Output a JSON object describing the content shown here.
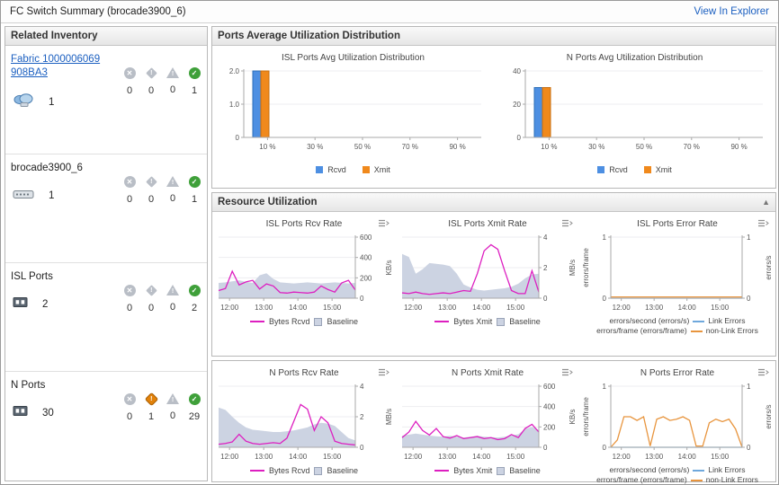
{
  "header": {
    "title": "FC Switch Summary (brocade3900_6)",
    "action": "View In Explorer"
  },
  "inventory": {
    "title": "Related Inventory",
    "items": [
      {
        "name": "Fabric 1000006069908BA3",
        "link": true,
        "icon": "fabric",
        "count": "1",
        "statuses": [
          {
            "type": "error",
            "value": "0",
            "active": false
          },
          {
            "type": "critical",
            "value": "0",
            "active": false
          },
          {
            "type": "warning",
            "value": "0",
            "active": false
          },
          {
            "type": "ok",
            "value": "1",
            "active": true
          }
        ]
      },
      {
        "name": "brocade3900_6",
        "link": false,
        "icon": "switch",
        "count": "1",
        "statuses": [
          {
            "type": "error",
            "value": "0",
            "active": false
          },
          {
            "type": "critical",
            "value": "0",
            "active": false
          },
          {
            "type": "warning",
            "value": "0",
            "active": false
          },
          {
            "type": "ok",
            "value": "1",
            "active": true
          }
        ]
      },
      {
        "name": "ISL Ports",
        "link": false,
        "icon": "port",
        "count": "2",
        "statuses": [
          {
            "type": "error",
            "value": "0",
            "active": false
          },
          {
            "type": "critical",
            "value": "0",
            "active": false
          },
          {
            "type": "warning",
            "value": "0",
            "active": false
          },
          {
            "type": "ok",
            "value": "2",
            "active": true
          }
        ]
      },
      {
        "name": "N Ports",
        "link": false,
        "icon": "port",
        "count": "30",
        "statuses": [
          {
            "type": "error",
            "value": "0",
            "active": false
          },
          {
            "type": "critical",
            "value": "1",
            "active": true
          },
          {
            "type": "warning",
            "value": "0",
            "active": false
          },
          {
            "type": "ok",
            "value": "29",
            "active": true
          }
        ]
      }
    ]
  },
  "panels": {
    "distribution": {
      "title": "Ports Average Utilization Distribution"
    },
    "resource": {
      "title": "Resource Utilization"
    }
  },
  "chart_data": [
    {
      "type": "bar",
      "title": "ISL Ports Avg Utilization Distribution",
      "categories": [
        "10 %",
        "30 %",
        "50 %",
        "70 %",
        "90 %"
      ],
      "series": [
        {
          "name": "Rcvd",
          "color": "#4d8fe2",
          "edge": "#2e6fb8",
          "values": [
            2,
            0,
            0,
            0,
            0
          ]
        },
        {
          "name": "Xmit",
          "color": "#f0891c",
          "edge": "#c86f10",
          "values": [
            2,
            0,
            0,
            0,
            0
          ]
        }
      ],
      "ylim": [
        0,
        2
      ],
      "yticks": [
        {
          "v": 0,
          "l": "0"
        },
        {
          "v": 1,
          "l": "1.0"
        },
        {
          "v": 2,
          "l": "2.0"
        }
      ]
    },
    {
      "type": "bar",
      "title": "N Ports Avg Utilization Distribution",
      "categories": [
        "10 %",
        "30 %",
        "50 %",
        "70 %",
        "90 %"
      ],
      "series": [
        {
          "name": "Rcvd",
          "color": "#4d8fe2",
          "edge": "#2e6fb8",
          "values": [
            30,
            0,
            0,
            0,
            0
          ]
        },
        {
          "name": "Xmit",
          "color": "#f0891c",
          "edge": "#c86f10",
          "values": [
            30,
            0,
            0,
            0,
            0
          ]
        }
      ],
      "ylim": [
        0,
        40
      ],
      "yticks": [
        {
          "v": 0,
          "l": "0"
        },
        {
          "v": 20,
          "l": "20"
        },
        {
          "v": 40,
          "l": "40"
        }
      ]
    },
    {
      "type": "line",
      "title": "ISL Ports Rcv Rate",
      "unit": "KB/s",
      "ylim": [
        0,
        600
      ],
      "yticks": [
        {
          "v": 0,
          "l": "0"
        },
        {
          "v": 200,
          "l": "200"
        },
        {
          "v": 400,
          "l": "400"
        },
        {
          "v": 600,
          "l": "600"
        }
      ],
      "xticks": [
        "12:00",
        "13:00",
        "14:00",
        "15:00"
      ],
      "baseline_color": "#ccd3e2",
      "baseline": [
        150,
        155,
        165,
        175,
        160,
        150,
        225,
        245,
        190,
        155,
        150,
        145,
        150,
        155,
        150,
        145,
        150,
        155,
        150,
        145,
        150
      ],
      "series": [
        {
          "name": "Bytes Rcvd",
          "color": "#dd1fc0",
          "values": [
            75,
            95,
            265,
            130,
            160,
            175,
            90,
            140,
            120,
            55,
            50,
            60,
            55,
            50,
            60,
            120,
            85,
            60,
            150,
            175,
            80
          ]
        }
      ],
      "legend": [
        {
          "kind": "line",
          "color": "#dd1fc0",
          "label": "Bytes Rcvd"
        },
        {
          "kind": "box",
          "color": "#ccd3e2",
          "label": "Baseline"
        }
      ]
    },
    {
      "type": "line",
      "title": "ISL Ports Xmit Rate",
      "unit": "MB/s",
      "ylim": [
        0,
        4
      ],
      "yticks": [
        {
          "v": 0,
          "l": "0"
        },
        {
          "v": 2,
          "l": "2"
        },
        {
          "v": 4,
          "l": "4"
        }
      ],
      "xticks": [
        "12:00",
        "13:00",
        "14:00",
        "15:00"
      ],
      "baseline_color": "#ccd3e2",
      "baseline": [
        2.9,
        2.7,
        1.6,
        1.9,
        2.3,
        2.25,
        2.2,
        2.1,
        1.6,
        0.9,
        0.7,
        0.55,
        0.5,
        0.55,
        0.6,
        0.65,
        0.75,
        0.95,
        1.3,
        1.55,
        1.6
      ],
      "series": [
        {
          "name": "Bytes Xmit",
          "color": "#dd1fc0",
          "values": [
            0.35,
            0.3,
            0.4,
            0.3,
            0.25,
            0.3,
            0.35,
            0.3,
            0.4,
            0.5,
            0.45,
            1.6,
            3.1,
            3.5,
            3.2,
            1.8,
            0.5,
            0.3,
            0.3,
            1.8,
            0.4
          ]
        }
      ],
      "legend": [
        {
          "kind": "line",
          "color": "#dd1fc0",
          "label": "Bytes Xmit"
        },
        {
          "kind": "box",
          "color": "#ccd3e2",
          "label": "Baseline"
        }
      ]
    },
    {
      "type": "error",
      "title": "ISL Ports Error Rate",
      "left_unit": "errors/frame",
      "right_unit": "errors/s",
      "ylim": [
        0,
        1
      ],
      "yticks": [
        {
          "v": 0,
          "l": "0"
        },
        {
          "v": 1,
          "l": "1"
        }
      ],
      "xticks": [
        "12:00",
        "13:00",
        "14:00",
        "15:00"
      ],
      "series": [
        {
          "name": "Link Errors",
          "color": "#6fa8dc",
          "values": [
            0,
            0,
            0,
            0,
            0,
            0,
            0,
            0,
            0,
            0,
            0,
            0,
            0,
            0,
            0,
            0,
            0,
            0,
            0,
            0,
            0
          ]
        },
        {
          "name": "non-Link Errors",
          "color": "#e8953e",
          "values": [
            0.02,
            0.02,
            0.02,
            0.02,
            0.02,
            0.02,
            0.02,
            0.02,
            0.02,
            0.02,
            0.02,
            0.02,
            0.02,
            0.02,
            0.02,
            0.02,
            0.02,
            0.02,
            0.02,
            0.02,
            0.02
          ]
        }
      ],
      "legend_rows": [
        {
          "text": "errors/second (errors/s)",
          "color": "#6fa8dc",
          "label": "Link Errors"
        },
        {
          "text": "errors/frame (errors/frame)",
          "color": "#e8953e",
          "label": "non-Link Errors"
        }
      ]
    },
    {
      "type": "line",
      "title": "N Ports Rcv Rate",
      "unit": "MB/s",
      "ylim": [
        0,
        4
      ],
      "yticks": [
        {
          "v": 0,
          "l": "0"
        },
        {
          "v": 2,
          "l": "2"
        },
        {
          "v": 4,
          "l": "4"
        }
      ],
      "xticks": [
        "12:00",
        "13:00",
        "14:00",
        "15:00"
      ],
      "baseline_color": "#ccd3e2",
      "baseline": [
        2.6,
        2.45,
        2.0,
        1.6,
        1.3,
        1.15,
        1.1,
        1.05,
        1.0,
        1.0,
        1.05,
        1.1,
        1.2,
        1.3,
        1.5,
        1.6,
        1.55,
        1.4,
        1.0,
        0.6,
        0.45
      ],
      "series": [
        {
          "name": "Bytes Rcvd",
          "color": "#dd1fc0",
          "values": [
            0.2,
            0.25,
            0.35,
            0.85,
            0.4,
            0.25,
            0.2,
            0.25,
            0.3,
            0.25,
            0.6,
            1.7,
            2.8,
            2.5,
            1.1,
            2.0,
            1.6,
            0.4,
            0.25,
            0.2,
            0.15
          ]
        }
      ],
      "legend": [
        {
          "kind": "line",
          "color": "#dd1fc0",
          "label": "Bytes Rcvd"
        },
        {
          "kind": "box",
          "color": "#ccd3e2",
          "label": "Baseline"
        }
      ]
    },
    {
      "type": "line",
      "title": "N Ports Xmit Rate",
      "unit": "KB/s",
      "ylim": [
        0,
        600
      ],
      "yticks": [
        {
          "v": 0,
          "l": "0"
        },
        {
          "v": 200,
          "l": "200"
        },
        {
          "v": 400,
          "l": "400"
        },
        {
          "v": 600,
          "l": "600"
        }
      ],
      "xticks": [
        "12:00",
        "13:00",
        "14:00",
        "15:00"
      ],
      "baseline_color": "#ccd3e2",
      "baseline": [
        115,
        125,
        135,
        125,
        115,
        108,
        104,
        112,
        104,
        96,
        104,
        112,
        104,
        100,
        96,
        104,
        116,
        128,
        180,
        200,
        170
      ],
      "series": [
        {
          "name": "Bytes Xmit",
          "color": "#dd1fc0",
          "values": [
            95,
            150,
            255,
            165,
            120,
            185,
            105,
            90,
            115,
            85,
            95,
            105,
            85,
            95,
            75,
            85,
            125,
            95,
            185,
            225,
            150
          ]
        }
      ],
      "legend": [
        {
          "kind": "line",
          "color": "#dd1fc0",
          "label": "Bytes Xmit"
        },
        {
          "kind": "box",
          "color": "#ccd3e2",
          "label": "Baseline"
        }
      ]
    },
    {
      "type": "error",
      "title": "N Ports Error Rate",
      "left_unit": "errors/frame",
      "right_unit": "errors/s",
      "ylim": [
        0,
        1
      ],
      "yticks": [
        {
          "v": 0,
          "l": "0"
        },
        {
          "v": 1,
          "l": "1"
        }
      ],
      "xticks": [
        "12:00",
        "13:00",
        "14:00",
        "15:00"
      ],
      "series": [
        {
          "name": "Link Errors",
          "color": "#6fa8dc",
          "values": [
            0,
            0,
            0,
            0,
            0,
            0,
            0,
            0,
            0,
            0,
            0,
            0,
            0,
            0,
            0,
            0,
            0,
            0,
            0,
            0,
            0
          ]
        },
        {
          "name": "non-Link Errors",
          "color": "#e8953e",
          "values": [
            0,
            0.12,
            0.5,
            0.5,
            0.44,
            0.5,
            0.02,
            0.46,
            0.5,
            0.44,
            0.46,
            0.5,
            0.44,
            0.02,
            0.02,
            0.4,
            0.46,
            0.42,
            0.46,
            0.3,
            0
          ]
        }
      ],
      "legend_rows": [
        {
          "text": "errors/second (errors/s)",
          "color": "#6fa8dc",
          "label": "Link Errors"
        },
        {
          "text": "errors/frame (errors/frame)",
          "color": "#e8953e",
          "label": "non-Link Errors"
        }
      ]
    }
  ]
}
